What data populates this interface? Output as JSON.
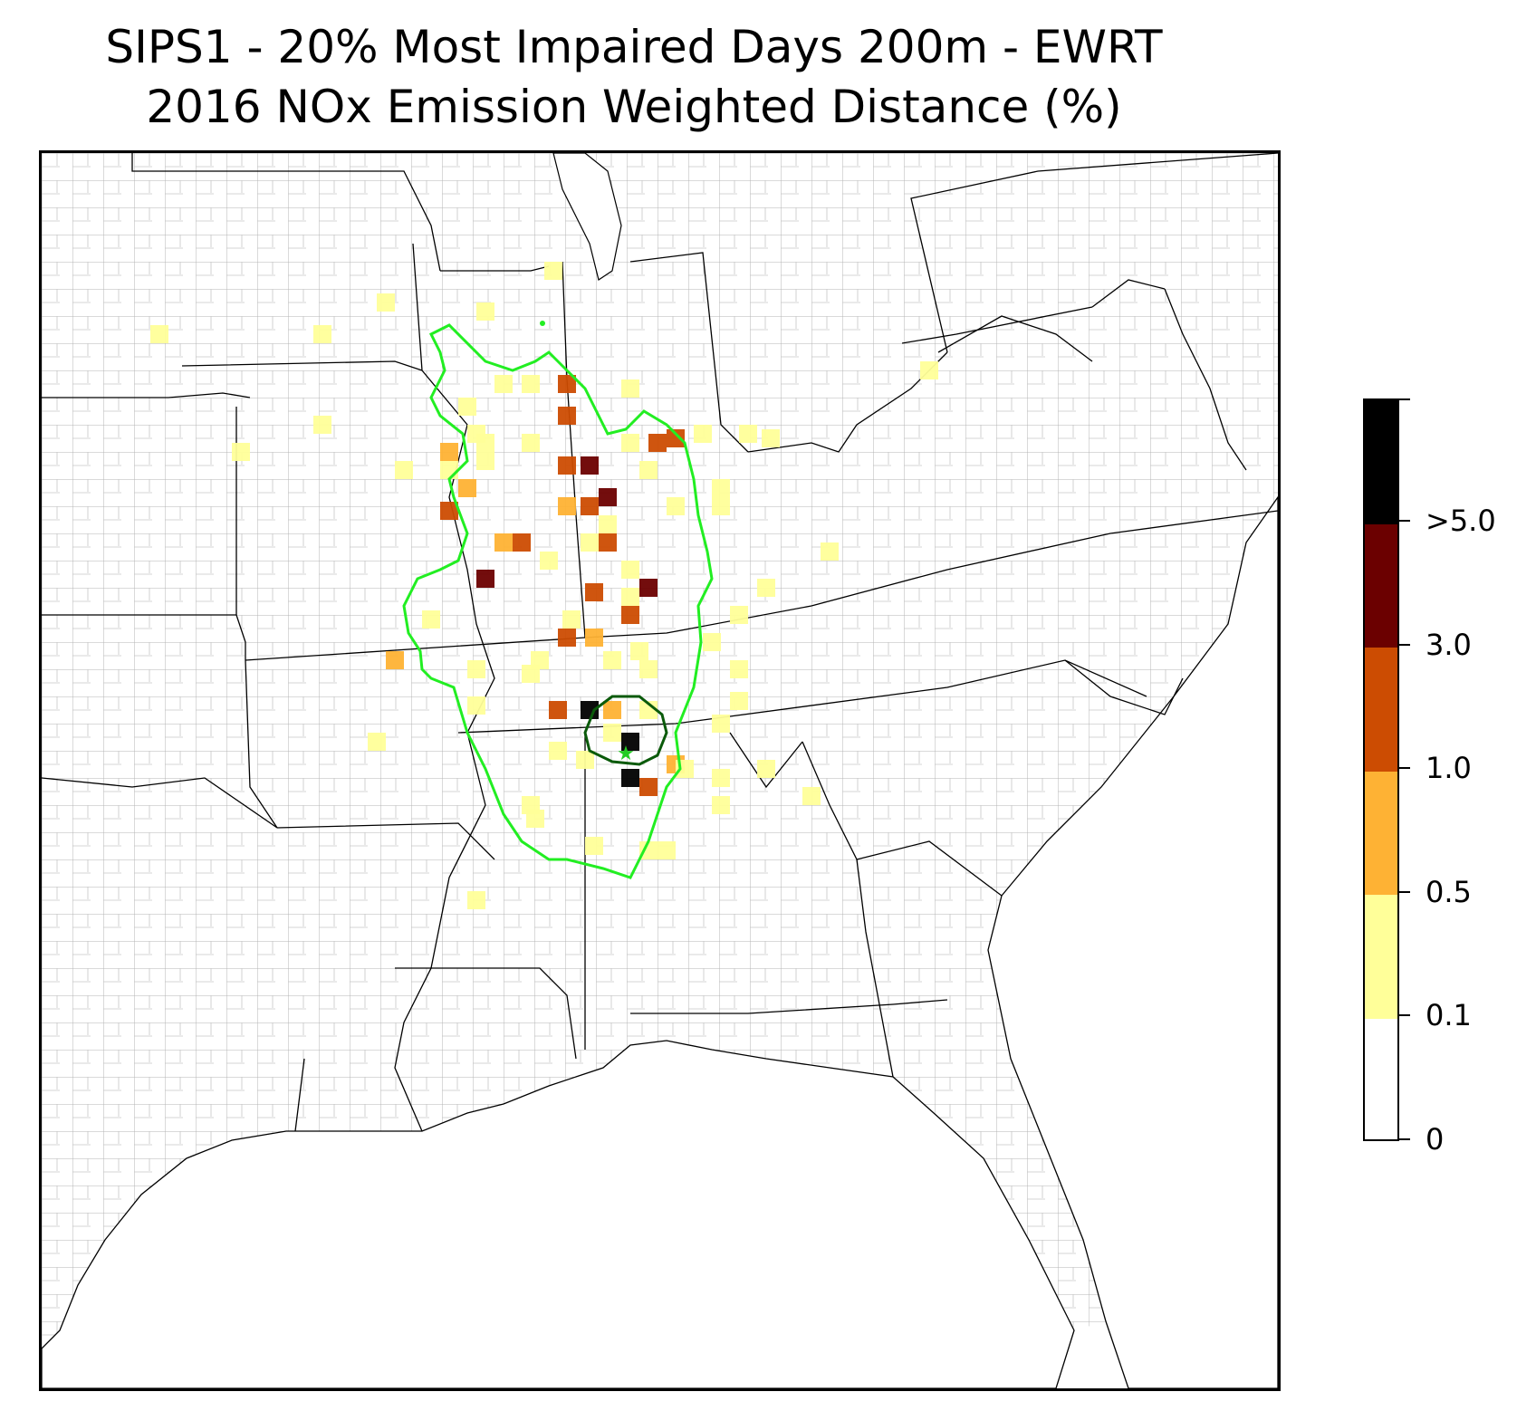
{
  "title": {
    "line1": "SIPS1 - 20% Most Impaired Days 200m - EWRT",
    "line2": "2016 NOx Emission Weighted Distance (%)"
  },
  "colors": {
    "background": "#ffffff",
    "county_lines": "#a0a0a0",
    "state_lines": "#000000",
    "outer_contour": "#22ee22",
    "inner_contour": "#0a5a0a",
    "source_marker": "#22cc22"
  },
  "legend": {
    "bins": [
      {
        "from": "0",
        "to": "0.1",
        "color": "#ffffff"
      },
      {
        "from": "0.1",
        "to": "0.5",
        "color": "#ffff99"
      },
      {
        "from": "0.5",
        "to": "1.0",
        "color": "#feb234"
      },
      {
        "from": "1.0",
        "to": "3.0",
        "color": "#cc4c02"
      },
      {
        "from": "3.0",
        "to": ">5.0",
        "color": "#6b0000"
      },
      {
        "from": ">5.0",
        "to": "",
        "color": "#000000"
      }
    ],
    "tick_labels": [
      "0",
      "0.1",
      "0.5",
      "1.0",
      "3.0",
      ">5.0"
    ]
  },
  "source_marker_icon": "star-icon"
}
